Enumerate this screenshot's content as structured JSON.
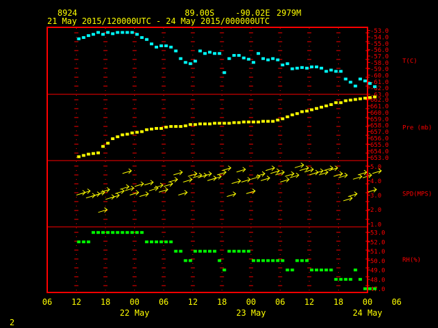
{
  "header": {
    "station": "8924",
    "lat": "89.00S",
    "lon": "-90.02E",
    "elev": "2979M",
    "period": "21 May 2015/120000UTC - 24 May 2015/000000UTC"
  },
  "page_number": "2",
  "colors": {
    "frame": "#ff0000",
    "ticks": "#ff0000",
    "axis_text": "#ffff00",
    "panel_label": "#ff0000",
    "temperature": "#00ffff",
    "pressure": "#ffff00",
    "wind": "#ffff00",
    "humidity": "#00ff00"
  },
  "chart_data": {
    "type": "scatter",
    "x_unit": "hours since 21 May 2015 06 UTC",
    "xlim": [
      0,
      66
    ],
    "x_ticks": [
      "06",
      "12",
      "18",
      "00",
      "06",
      "12",
      "18",
      "00",
      "06",
      "12",
      "18",
      "00",
      "06"
    ],
    "day_labels": [
      {
        "label": "22 May",
        "x": 18
      },
      {
        "label": "23 May",
        "x": 42
      },
      {
        "label": "24 May",
        "x": 66
      }
    ],
    "panels": [
      {
        "id": "temperature",
        "label": "T(C)",
        "ylim": [
          -63,
          -52.5
        ],
        "ticks": [
          "-53.0",
          "-54.0",
          "-55.0",
          "-56.0",
          "-57.0",
          "-58.0",
          "-59.0",
          "-60.0",
          "-61.0",
          "-62.0",
          "-63.0"
        ],
        "tick_values": [
          -53,
          -54,
          -55,
          -56,
          -57,
          -58,
          -59,
          -60,
          -61,
          -62,
          -63
        ],
        "points": [
          [
            6.5,
            -54.3
          ],
          [
            7.5,
            -54.1
          ],
          [
            8.5,
            -53.8
          ],
          [
            9.5,
            -53.6
          ],
          [
            10.5,
            -53.3
          ],
          [
            11.5,
            -53.6
          ],
          [
            12.5,
            -53.3
          ],
          [
            13.5,
            -53.5
          ],
          [
            14.5,
            -53.3
          ],
          [
            15.5,
            -53.3
          ],
          [
            16.5,
            -53.3
          ],
          [
            17.5,
            -53.3
          ],
          [
            18.5,
            -53.6
          ],
          [
            19.5,
            -54.1
          ],
          [
            20.5,
            -54.4
          ],
          [
            21.5,
            -55.1
          ],
          [
            22.5,
            -55.6
          ],
          [
            23.5,
            -55.4
          ],
          [
            24.5,
            -55.4
          ],
          [
            25.5,
            -55.6
          ],
          [
            26.5,
            -56.2
          ],
          [
            27.5,
            -57.4
          ],
          [
            28.5,
            -58.0
          ],
          [
            29.5,
            -58.2
          ],
          [
            30.5,
            -57.8
          ],
          [
            31.5,
            -56.2
          ],
          [
            32.5,
            -56.6
          ],
          [
            33.5,
            -56.4
          ],
          [
            34.5,
            -56.6
          ],
          [
            35.5,
            -56.6
          ],
          [
            36.5,
            -59.6
          ],
          [
            37.5,
            -57.4
          ],
          [
            38.5,
            -56.9
          ],
          [
            39.5,
            -56.9
          ],
          [
            40.5,
            -57.3
          ],
          [
            41.5,
            -57.5
          ],
          [
            42.5,
            -58.0
          ],
          [
            43.5,
            -56.6
          ],
          [
            44.5,
            -57.4
          ],
          [
            45.5,
            -57.6
          ],
          [
            46.5,
            -57.4
          ],
          [
            47.5,
            -57.6
          ],
          [
            48.5,
            -58.4
          ],
          [
            49.5,
            -58.2
          ],
          [
            50.5,
            -59.0
          ],
          [
            51.5,
            -58.9
          ],
          [
            52.5,
            -58.8
          ],
          [
            53.5,
            -58.9
          ],
          [
            54.5,
            -58.7
          ],
          [
            55.5,
            -58.7
          ],
          [
            56.5,
            -58.9
          ],
          [
            57.5,
            -59.4
          ],
          [
            58.5,
            -59.2
          ],
          [
            59.5,
            -59.4
          ],
          [
            60.5,
            -59.4
          ],
          [
            61.5,
            -60.6
          ],
          [
            62.5,
            -61.1
          ],
          [
            63.5,
            -61.7
          ],
          [
            64.5,
            -60.6
          ],
          [
            65.5,
            -60.9
          ],
          [
            66.5,
            -61.3
          ],
          [
            67.5,
            -61.8
          ]
        ]
      },
      {
        "id": "pressure",
        "label": "Pre (mb)",
        "ylim": [
          652.5,
          662.8
        ],
        "ticks": [
          "653.0",
          "654.0",
          "655.0",
          "656.0",
          "657.0",
          "658.0",
          "659.0",
          "660.0",
          "661.0",
          "662.0"
        ],
        "tick_values": [
          653,
          654,
          655,
          656,
          657,
          658,
          659,
          660,
          661,
          662
        ],
        "points": [
          [
            6.5,
            653.1
          ],
          [
            7.5,
            653.3
          ],
          [
            8.5,
            653.5
          ],
          [
            9.5,
            653.6
          ],
          [
            10.5,
            653.7
          ],
          [
            11.5,
            654.7
          ],
          [
            12.5,
            655.2
          ],
          [
            13.5,
            655.9
          ],
          [
            14.5,
            656.2
          ],
          [
            15.5,
            656.5
          ],
          [
            16.5,
            656.6
          ],
          [
            17.5,
            656.8
          ],
          [
            18.5,
            656.9
          ],
          [
            19.5,
            657.0
          ],
          [
            20.5,
            657.3
          ],
          [
            21.5,
            657.4
          ],
          [
            22.5,
            657.5
          ],
          [
            23.5,
            657.5
          ],
          [
            24.5,
            657.7
          ],
          [
            25.5,
            657.8
          ],
          [
            26.5,
            657.8
          ],
          [
            27.5,
            657.8
          ],
          [
            28.5,
            657.9
          ],
          [
            29.5,
            658.1
          ],
          [
            30.5,
            658.1
          ],
          [
            31.5,
            658.2
          ],
          [
            32.5,
            658.2
          ],
          [
            33.5,
            658.2
          ],
          [
            34.5,
            658.3
          ],
          [
            35.5,
            658.3
          ],
          [
            36.5,
            658.3
          ],
          [
            37.5,
            658.3
          ],
          [
            38.5,
            658.4
          ],
          [
            39.5,
            658.4
          ],
          [
            40.5,
            658.5
          ],
          [
            41.5,
            658.5
          ],
          [
            42.5,
            658.5
          ],
          [
            43.5,
            658.5
          ],
          [
            44.5,
            658.6
          ],
          [
            45.5,
            658.6
          ],
          [
            46.5,
            658.6
          ],
          [
            47.5,
            658.8
          ],
          [
            48.5,
            659.0
          ],
          [
            49.5,
            659.3
          ],
          [
            50.5,
            659.6
          ],
          [
            51.5,
            659.8
          ],
          [
            52.5,
            660.1
          ],
          [
            53.5,
            660.2
          ],
          [
            54.5,
            660.4
          ],
          [
            55.5,
            660.6
          ],
          [
            56.5,
            660.8
          ],
          [
            57.5,
            661.0
          ],
          [
            58.5,
            661.2
          ],
          [
            59.5,
            661.5
          ],
          [
            60.5,
            661.5
          ],
          [
            61.5,
            661.8
          ],
          [
            62.5,
            661.9
          ],
          [
            63.5,
            662.0
          ],
          [
            64.5,
            662.1
          ],
          [
            65.5,
            662.2
          ],
          [
            66.5,
            662.3
          ],
          [
            67.5,
            662.4
          ]
        ]
      },
      {
        "id": "wind",
        "label": "SPD(MPS)",
        "ylim": [
          0.8,
          5.4
        ],
        "ticks": [
          "1.0",
          "2.0",
          "3.0",
          "4.0",
          "5.0"
        ],
        "tick_values": [
          1,
          2,
          3,
          4,
          5
        ],
        "points": [
          [
            7,
            3.1
          ],
          [
            8,
            3.2
          ],
          [
            9,
            2.9
          ],
          [
            10,
            3.0
          ],
          [
            11,
            3.1
          ],
          [
            11.5,
            1.9
          ],
          [
            12,
            3.3
          ],
          [
            13,
            2.8
          ],
          [
            14,
            2.9
          ],
          [
            15,
            3.2
          ],
          [
            16,
            3.5
          ],
          [
            16.5,
            4.6
          ],
          [
            17,
            3.4
          ],
          [
            18,
            3.1
          ],
          [
            19,
            3.7
          ],
          [
            20,
            3.0
          ],
          [
            21,
            3.8
          ],
          [
            22,
            3.4
          ],
          [
            23,
            3.6
          ],
          [
            24,
            3.3
          ],
          [
            25,
            3.7
          ],
          [
            26,
            4.0
          ],
          [
            27,
            4.5
          ],
          [
            28,
            3.1
          ],
          [
            29,
            4.0
          ],
          [
            30,
            4.4
          ],
          [
            31,
            4.3
          ],
          [
            32,
            4.3
          ],
          [
            33,
            4.4
          ],
          [
            34,
            4.1
          ],
          [
            35,
            4.2
          ],
          [
            36,
            4.5
          ],
          [
            37,
            4.8
          ],
          [
            38,
            3.0
          ],
          [
            39,
            3.9
          ],
          [
            40,
            4.7
          ],
          [
            41,
            4.0
          ],
          [
            42,
            3.2
          ],
          [
            43,
            4.2
          ],
          [
            44,
            4.4
          ],
          [
            45,
            4.1
          ],
          [
            46,
            4.8
          ],
          [
            47,
            4.6
          ],
          [
            48,
            4.5
          ],
          [
            49,
            4.0
          ],
          [
            50,
            4.4
          ],
          [
            51,
            4.3
          ],
          [
            52,
            5.0
          ],
          [
            53,
            4.8
          ],
          [
            54,
            4.7
          ],
          [
            55,
            4.5
          ],
          [
            56,
            4.6
          ],
          [
            57,
            4.5
          ],
          [
            58,
            4.8
          ],
          [
            59,
            4.8
          ],
          [
            60,
            4.4
          ],
          [
            61,
            4.3
          ],
          [
            62,
            2.7
          ],
          [
            63,
            3.0
          ],
          [
            64,
            4.2
          ],
          [
            65,
            4.5
          ],
          [
            66,
            4.3
          ],
          [
            67,
            3.3
          ],
          [
            68,
            4.6
          ]
        ]
      },
      {
        "id": "humidity",
        "label": "RH(%)",
        "ylim": [
          46.6,
          53.6
        ],
        "ticks": [
          "47.0",
          "48.0",
          "49.0",
          "50.0",
          "51.0",
          "52.0",
          "53.0"
        ],
        "tick_values": [
          47,
          48,
          49,
          50,
          51,
          52,
          53
        ],
        "points": [
          [
            6.5,
            52.0
          ],
          [
            7.5,
            52.0
          ],
          [
            8.5,
            52.0
          ],
          [
            9.5,
            53.0
          ],
          [
            10.5,
            53.0
          ],
          [
            11.5,
            53.0
          ],
          [
            12.5,
            53.0
          ],
          [
            13.5,
            53.0
          ],
          [
            14.5,
            53.0
          ],
          [
            15.5,
            53.0
          ],
          [
            16.5,
            53.0
          ],
          [
            17.5,
            53.0
          ],
          [
            18.5,
            53.0
          ],
          [
            19.5,
            53.0
          ],
          [
            20.5,
            52.0
          ],
          [
            21.5,
            52.0
          ],
          [
            22.5,
            52.0
          ],
          [
            23.5,
            52.0
          ],
          [
            24.5,
            52.0
          ],
          [
            25.5,
            52.0
          ],
          [
            26.5,
            51.0
          ],
          [
            27.5,
            51.0
          ],
          [
            28.5,
            50.0
          ],
          [
            29.5,
            50.0
          ],
          [
            30.5,
            51.0
          ],
          [
            31.5,
            51.0
          ],
          [
            32.5,
            51.0
          ],
          [
            33.5,
            51.0
          ],
          [
            34.5,
            51.0
          ],
          [
            35.5,
            50.0
          ],
          [
            36.5,
            49.0
          ],
          [
            37.5,
            51.0
          ],
          [
            38.5,
            51.0
          ],
          [
            39.5,
            51.0
          ],
          [
            40.5,
            51.0
          ],
          [
            41.5,
            51.0
          ],
          [
            42.5,
            50.0
          ],
          [
            43.5,
            50.0
          ],
          [
            44.5,
            50.0
          ],
          [
            45.5,
            50.0
          ],
          [
            46.5,
            50.0
          ],
          [
            47.5,
            50.0
          ],
          [
            48.5,
            50.0
          ],
          [
            49.5,
            49.0
          ],
          [
            50.5,
            49.0
          ],
          [
            51.5,
            50.0
          ],
          [
            52.5,
            50.0
          ],
          [
            53.5,
            50.0
          ],
          [
            54.5,
            49.0
          ],
          [
            55.5,
            49.0
          ],
          [
            56.5,
            49.0
          ],
          [
            57.5,
            49.0
          ],
          [
            58.5,
            49.0
          ],
          [
            59.5,
            48.0
          ],
          [
            60.5,
            48.0
          ],
          [
            61.5,
            48.0
          ],
          [
            62.5,
            48.0
          ],
          [
            63.5,
            49.0
          ],
          [
            64.5,
            48.0
          ],
          [
            65.5,
            47.0
          ],
          [
            66.5,
            47.0
          ],
          [
            67.5,
            47.0
          ]
        ]
      }
    ]
  }
}
